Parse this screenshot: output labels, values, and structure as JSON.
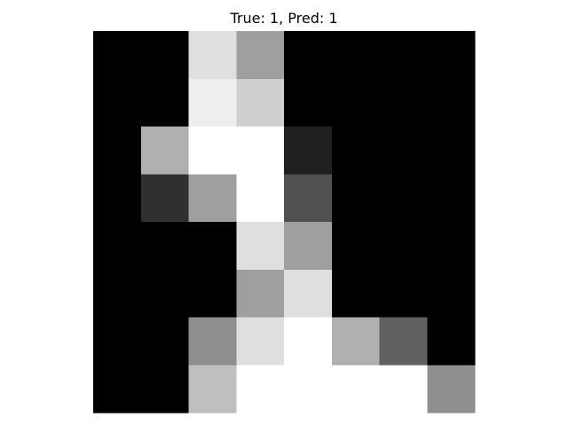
{
  "chart_data": {
    "type": "heatmap",
    "title": "True: 1, Pred: 1",
    "colormap": "gray",
    "value_range": [
      0,
      16
    ],
    "axis": "off",
    "rows": 8,
    "cols": 8,
    "values": [
      [
        0,
        0,
        14,
        10,
        0,
        0,
        0,
        0
      ],
      [
        0,
        0,
        15,
        13,
        0,
        0,
        0,
        0
      ],
      [
        0,
        11,
        16,
        16,
        2,
        0,
        0,
        0
      ],
      [
        0,
        3,
        10,
        16,
        5,
        0,
        0,
        0
      ],
      [
        0,
        0,
        0,
        14,
        10,
        0,
        0,
        0
      ],
      [
        0,
        0,
        0,
        10,
        14,
        0,
        0,
        0
      ],
      [
        0,
        0,
        9,
        14,
        16,
        11,
        6,
        0
      ],
      [
        0,
        0,
        12,
        16,
        16,
        16,
        16,
        9
      ]
    ]
  }
}
